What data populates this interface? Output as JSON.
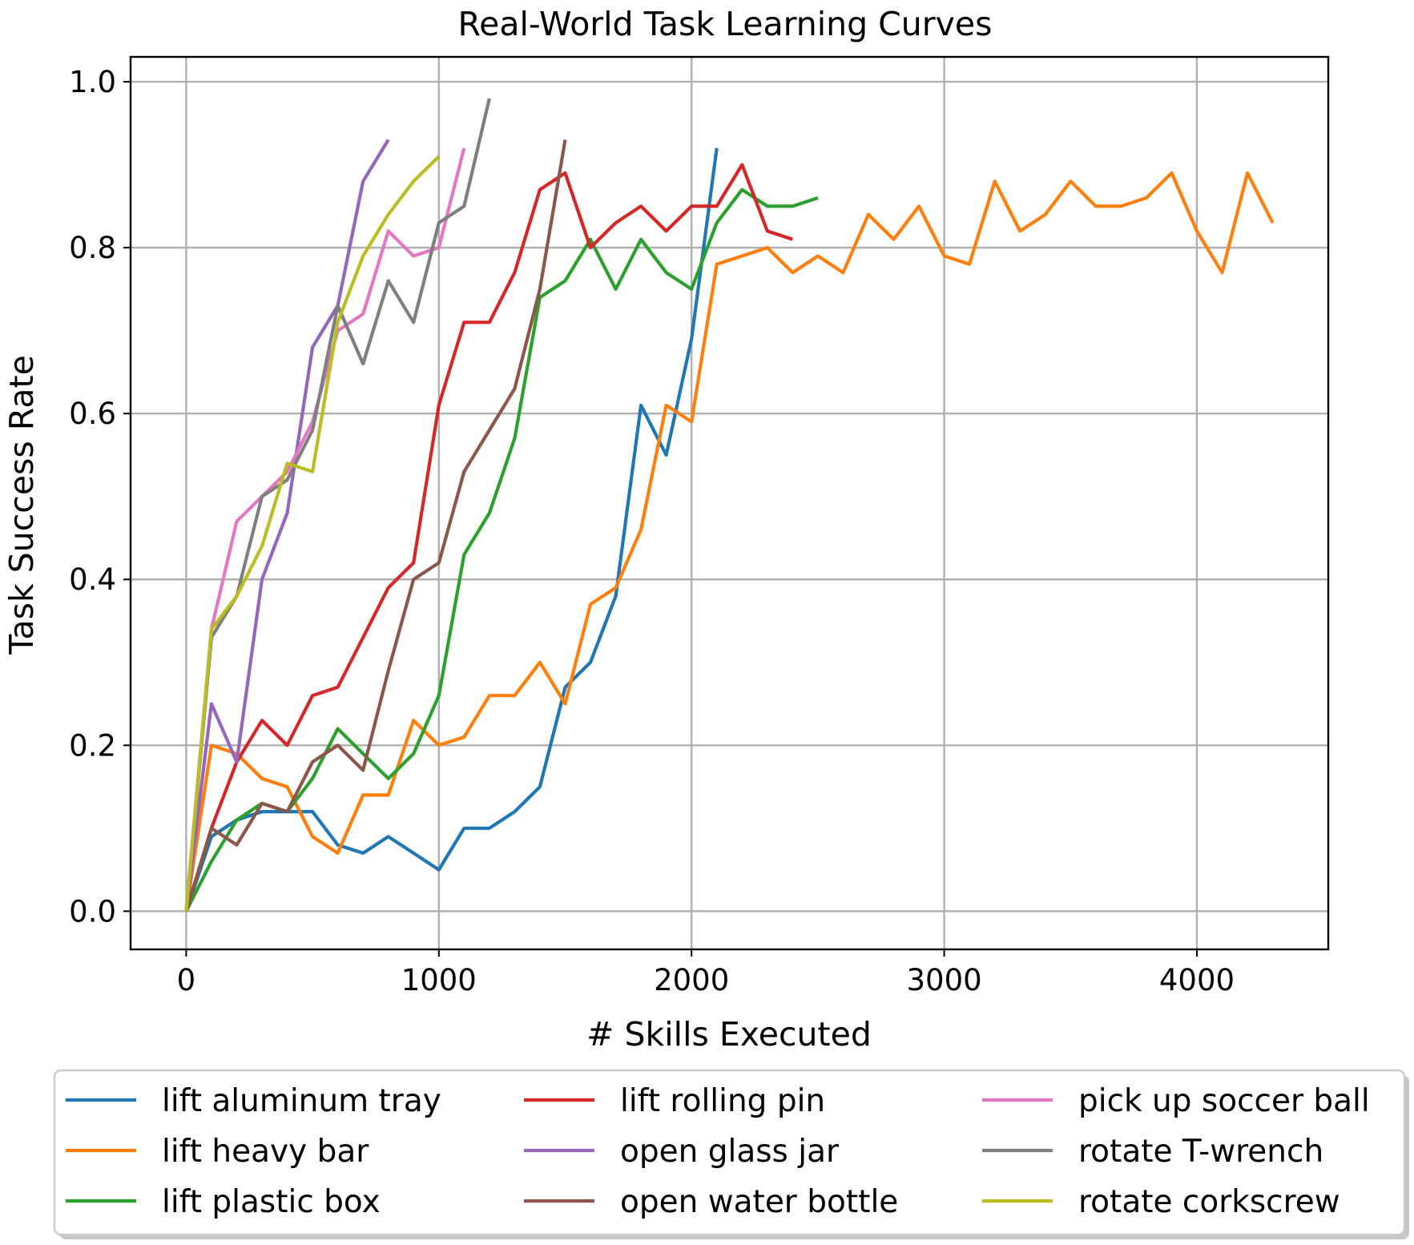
{
  "chart_data": {
    "type": "line",
    "title": "Real-World Task Learning Curves",
    "xlabel": "# Skills Executed",
    "ylabel": "Task Success Rate",
    "xlim": [
      -220,
      4520
    ],
    "ylim": [
      -0.046,
      1.03
    ],
    "xticks": [
      0,
      1000,
      2000,
      3000,
      4000
    ],
    "xtick_labels": [
      "0",
      "1000",
      "2000",
      "3000",
      "4000"
    ],
    "yticks": [
      0.0,
      0.2,
      0.4,
      0.6,
      0.8,
      1.0
    ],
    "ytick_labels": [
      "0.0",
      "0.2",
      "0.4",
      "0.6",
      "0.8",
      "1.0"
    ],
    "grid": true,
    "legend_position": "below plot, 3 columns",
    "series": [
      {
        "name": "lift aluminum tray",
        "color": "#1f77b4",
        "x": [
          0,
          100,
          200,
          300,
          400,
          500,
          600,
          700,
          800,
          900,
          1000,
          1100,
          1200,
          1300,
          1400,
          1500,
          1600,
          1700,
          1800,
          1900,
          2000,
          2100
        ],
        "y": [
          0,
          0.09,
          0.11,
          0.12,
          0.12,
          0.12,
          0.08,
          0.07,
          0.09,
          0.07,
          0.05,
          0.1,
          0.1,
          0.12,
          0.15,
          0.27,
          0.3,
          0.38,
          0.61,
          0.55,
          0.69,
          0.92
        ]
      },
      {
        "name": "lift heavy bar",
        "color": "#ff7f0e",
        "x": [
          0,
          100,
          200,
          300,
          400,
          500,
          600,
          700,
          800,
          900,
          1000,
          1100,
          1200,
          1300,
          1400,
          1500,
          1600,
          1700,
          1800,
          1900,
          2000,
          2100,
          2200,
          2300,
          2400,
          2500,
          2600,
          2700,
          2800,
          2900,
          3000,
          3100,
          3200,
          3300,
          3400,
          3500,
          3600,
          3700,
          3800,
          3900,
          4000,
          4100,
          4200,
          4300
        ],
        "y": [
          0,
          0.2,
          0.19,
          0.16,
          0.15,
          0.09,
          0.07,
          0.14,
          0.14,
          0.23,
          0.2,
          0.21,
          0.26,
          0.26,
          0.3,
          0.25,
          0.37,
          0.39,
          0.46,
          0.61,
          0.59,
          0.78,
          0.79,
          0.8,
          0.77,
          0.79,
          0.77,
          0.84,
          0.81,
          0.85,
          0.79,
          0.78,
          0.88,
          0.82,
          0.84,
          0.88,
          0.85,
          0.85,
          0.86,
          0.89,
          0.82,
          0.77,
          0.89,
          0.83
        ]
      },
      {
        "name": "lift plastic box",
        "color": "#2ca02c",
        "x": [
          0,
          100,
          200,
          300,
          400,
          500,
          600,
          700,
          800,
          900,
          1000,
          1100,
          1200,
          1300,
          1400,
          1500,
          1600,
          1700,
          1800,
          1900,
          2000,
          2100,
          2200,
          2300,
          2400,
          2500
        ],
        "y": [
          0,
          0.06,
          0.11,
          0.13,
          0.12,
          0.16,
          0.22,
          0.19,
          0.16,
          0.19,
          0.26,
          0.43,
          0.48,
          0.57,
          0.74,
          0.76,
          0.81,
          0.75,
          0.81,
          0.77,
          0.75,
          0.83,
          0.87,
          0.85,
          0.85,
          0.86
        ]
      },
      {
        "name": "lift rolling pin",
        "color": "#d62728",
        "x": [
          0,
          100,
          200,
          300,
          400,
          500,
          600,
          700,
          800,
          900,
          1000,
          1100,
          1200,
          1300,
          1400,
          1500,
          1600,
          1700,
          1800,
          1900,
          2000,
          2100,
          2200,
          2300,
          2400
        ],
        "y": [
          0,
          0.1,
          0.18,
          0.23,
          0.2,
          0.26,
          0.27,
          0.33,
          0.39,
          0.42,
          0.61,
          0.71,
          0.71,
          0.77,
          0.87,
          0.89,
          0.8,
          0.83,
          0.85,
          0.82,
          0.85,
          0.85,
          0.9,
          0.82,
          0.81
        ]
      },
      {
        "name": "open glass jar",
        "color": "#9467bd",
        "x": [
          0,
          100,
          200,
          300,
          400,
          500,
          600,
          700,
          800
        ],
        "y": [
          0,
          0.25,
          0.18,
          0.4,
          0.48,
          0.68,
          0.73,
          0.88,
          0.93
        ]
      },
      {
        "name": "open water bottle",
        "color": "#8c564b",
        "x": [
          0,
          100,
          200,
          300,
          400,
          500,
          600,
          700,
          800,
          900,
          1000,
          1100,
          1200,
          1300,
          1400,
          1500
        ],
        "y": [
          0,
          0.1,
          0.08,
          0.13,
          0.12,
          0.18,
          0.2,
          0.17,
          0.29,
          0.4,
          0.42,
          0.53,
          0.58,
          0.63,
          0.75,
          0.93
        ]
      },
      {
        "name": "pick up soccer ball",
        "color": "#e377c2",
        "x": [
          0,
          100,
          200,
          300,
          400,
          500,
          600,
          700,
          800,
          900,
          1000,
          1100
        ],
        "y": [
          0,
          0.34,
          0.47,
          0.5,
          0.53,
          0.59,
          0.7,
          0.72,
          0.82,
          0.79,
          0.8,
          0.92
        ]
      },
      {
        "name": "rotate T-wrench",
        "color": "#7f7f7f",
        "x": [
          0,
          100,
          200,
          300,
          400,
          500,
          600,
          700,
          800,
          900,
          1000,
          1100,
          1200
        ],
        "y": [
          0,
          0.33,
          0.38,
          0.5,
          0.52,
          0.58,
          0.73,
          0.66,
          0.76,
          0.71,
          0.83,
          0.85,
          0.98
        ]
      },
      {
        "name": "rotate corkscrew",
        "color": "#bcbd22",
        "x": [
          0,
          100,
          200,
          300,
          400,
          500,
          600,
          700,
          800,
          900,
          1000
        ],
        "y": [
          0,
          0.34,
          0.38,
          0.44,
          0.54,
          0.53,
          0.71,
          0.79,
          0.84,
          0.88,
          0.91
        ]
      }
    ]
  }
}
